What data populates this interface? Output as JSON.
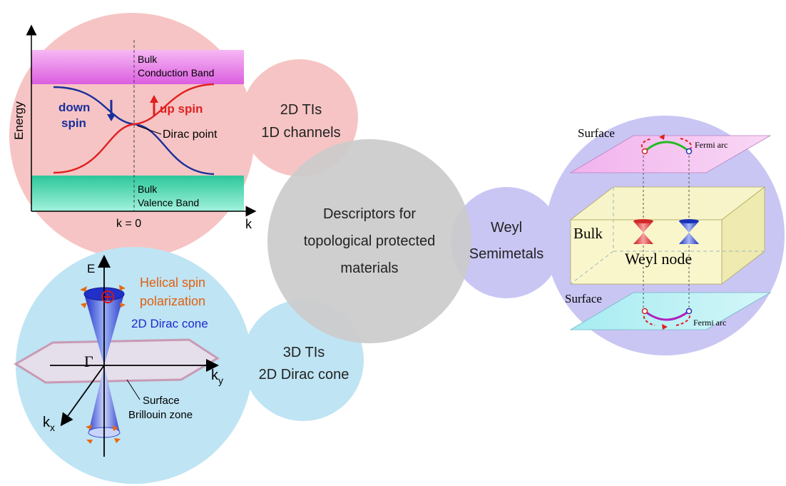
{
  "center": {
    "line1": "Descriptors for",
    "line2": "topological protected",
    "line3": "materials"
  },
  "tis2d": {
    "line1": "2D TIs",
    "line2": "1D channels"
  },
  "tis3d": {
    "line1": "3D TIs",
    "line2": "2D Dirac cone"
  },
  "weyl_bubble": {
    "line1": "Weyl",
    "line2": "Semimetals"
  },
  "band_diagram": {
    "y_axis": "Energy",
    "x_axis": "k",
    "k_zero": "k = 0",
    "conduction": {
      "line1": "Bulk",
      "line2": "Conduction Band"
    },
    "valence": {
      "line1": "Bulk",
      "line2": "Valence Band"
    },
    "down_spin": {
      "line1": "down",
      "line2": "spin"
    },
    "up_spin": "up spin",
    "dirac_point": "Dirac point",
    "colors": {
      "down": "#1a2f9a",
      "up": "#e02020",
      "conduction": "#e070e8",
      "valence": "#30d0a8"
    }
  },
  "dirac_cone": {
    "e_axis": "E",
    "helical": {
      "line1": "Helical spin",
      "line2": "polarization"
    },
    "cone": "2D Dirac cone",
    "gamma": "Γ",
    "ky": "k",
    "ky_sub": "y",
    "kx": "k",
    "kx_sub": "x",
    "surface": {
      "line1": "Surface",
      "line2": "Brillouin zone"
    },
    "colors": {
      "helical": "#e06010",
      "cone": "#1a2ad0"
    }
  },
  "weyl_diagram": {
    "surface_top": "Surface",
    "surface_bottom": "Surface",
    "fermi_arc_top": "Fermi arc",
    "fermi_arc_bottom": "Fermi arc",
    "bulk": "Bulk",
    "weyl_node": "Weyl node"
  }
}
